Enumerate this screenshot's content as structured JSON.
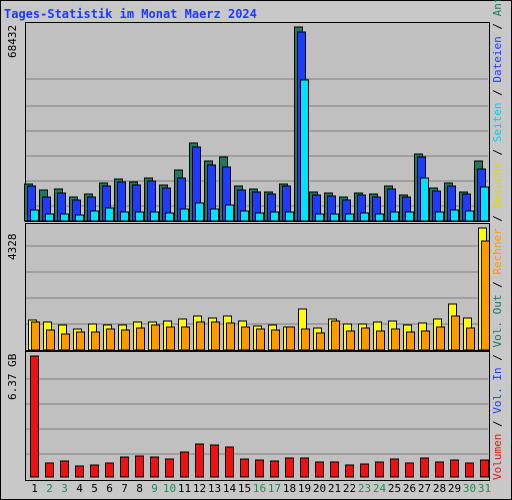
{
  "title": "Tages-Statistik im Monat Maerz 2024",
  "chart_data": {
    "type": "bar",
    "title": "Tages-Statistik im Monat Maerz 2024",
    "x": [
      1,
      2,
      3,
      4,
      5,
      6,
      7,
      8,
      9,
      10,
      11,
      12,
      13,
      14,
      15,
      16,
      17,
      18,
      19,
      20,
      21,
      22,
      23,
      24,
      25,
      26,
      27,
      28,
      29,
      30,
      31
    ],
    "weekend_days": [
      2,
      3,
      9,
      10,
      16,
      17,
      23,
      24,
      30,
      31
    ],
    "panels": [
      {
        "name": "top",
        "ymax_label": "68432",
        "ymax": 68432,
        "series": [
          {
            "name": "Anfragen",
            "color": "#1d7a5c",
            "values": [
              13000,
              11000,
              11200,
              8400,
              9600,
              13400,
              14800,
              13600,
              15100,
              12800,
              18100,
              27500,
              21200,
              22400,
              12200,
              11200,
              10400,
              13200,
              68400,
              10100,
              9800,
              8300,
              9900,
              9500,
              12500,
              9300,
              23800,
              11800,
              13500,
              10200,
              21200
            ]
          },
          {
            "name": "Dateien",
            "color": "#1e3cff",
            "values": [
              12300,
              8300,
              10000,
              7400,
              8600,
              12300,
              13700,
              12700,
              14200,
              11700,
              15000,
              26100,
              19900,
              19200,
              11000,
              10200,
              9600,
              12300,
              66800,
              9300,
              8800,
              7300,
              9100,
              8400,
              11300,
              8400,
              22700,
              10600,
              12300,
              9400,
              18300
            ]
          },
          {
            "name": "Seiten",
            "color": "#00e0ff",
            "values": [
              4000,
              2300,
              2500,
              2200,
              3700,
              4500,
              3300,
              3200,
              3300,
              2800,
              4100,
              6400,
              4400,
              5500,
              3600,
              2700,
              3000,
              3300,
              49900,
              2500,
              2600,
              2300,
              2700,
              2500,
              3000,
              3000,
              15000,
              3100,
              4000,
              3600,
              12000
            ]
          }
        ]
      },
      {
        "name": "middle",
        "ymax_label": "4328",
        "ymax": 4328,
        "series": [
          {
            "name": "Besuche",
            "color": "#ffff00",
            "values": [
              1050,
              1000,
              880,
              740,
              910,
              880,
              880,
              990,
              1010,
              1030,
              1110,
              1220,
              1150,
              1200,
              1020,
              860,
              880,
              810,
              1460,
              790,
              1090,
              940,
              910,
              980,
              1020,
              870,
              950,
              1110,
              1620,
              1120,
              4328
            ]
          },
          {
            "name": "Rechner",
            "color": "#ff9900",
            "values": [
              990,
              710,
              580,
              640,
              640,
              740,
              720,
              780,
              880,
              820,
              830,
              990,
              990,
              970,
              830,
              730,
              710,
              810,
              760,
              620,
              1030,
              680,
              770,
              680,
              740,
              650,
              680,
              800,
              1220,
              790,
              3880
            ]
          }
        ]
      },
      {
        "name": "bottom",
        "ymax_label": "6.37 GB",
        "ymax": 6.37,
        "series": [
          {
            "name": "Volumen",
            "color": "#ee1111",
            "values": [
              6.37,
              0.76,
              0.86,
              0.6,
              0.65,
              0.73,
              1.06,
              1.11,
              1.06,
              0.93,
              1.34,
              1.76,
              1.66,
              1.56,
              0.96,
              0.91,
              0.86,
              1.01,
              0.99,
              0.81,
              0.81,
              0.65,
              0.71,
              0.81,
              0.96,
              0.76,
              1.01,
              0.81,
              0.91,
              0.76,
              0.91
            ]
          }
        ]
      }
    ]
  },
  "legend": {
    "items": [
      {
        "label": "Volumen",
        "color": "#ee1111"
      },
      {
        "label": "Vol. In",
        "color": "#1e3cff"
      },
      {
        "label": "Vol. Out",
        "color": "#1d7a5c"
      },
      {
        "label": "Rechner",
        "color": "#ff9900"
      },
      {
        "label": "Besuche",
        "color": "#dddd00"
      },
      {
        "label": "Seiten",
        "color": "#00d0e8"
      },
      {
        "label": "Dateien",
        "color": "#1e3cff"
      },
      {
        "label": "Anfragen",
        "color": "#1d7a5c"
      }
    ],
    "separator": " / "
  },
  "colors": {
    "title": "#1e39ff",
    "weekday": "#000000",
    "weekend": "#1d8a5c",
    "panel_bg": "#c0c0c0",
    "frame_bg": "#c8c8c8",
    "gridline": "#808080"
  }
}
